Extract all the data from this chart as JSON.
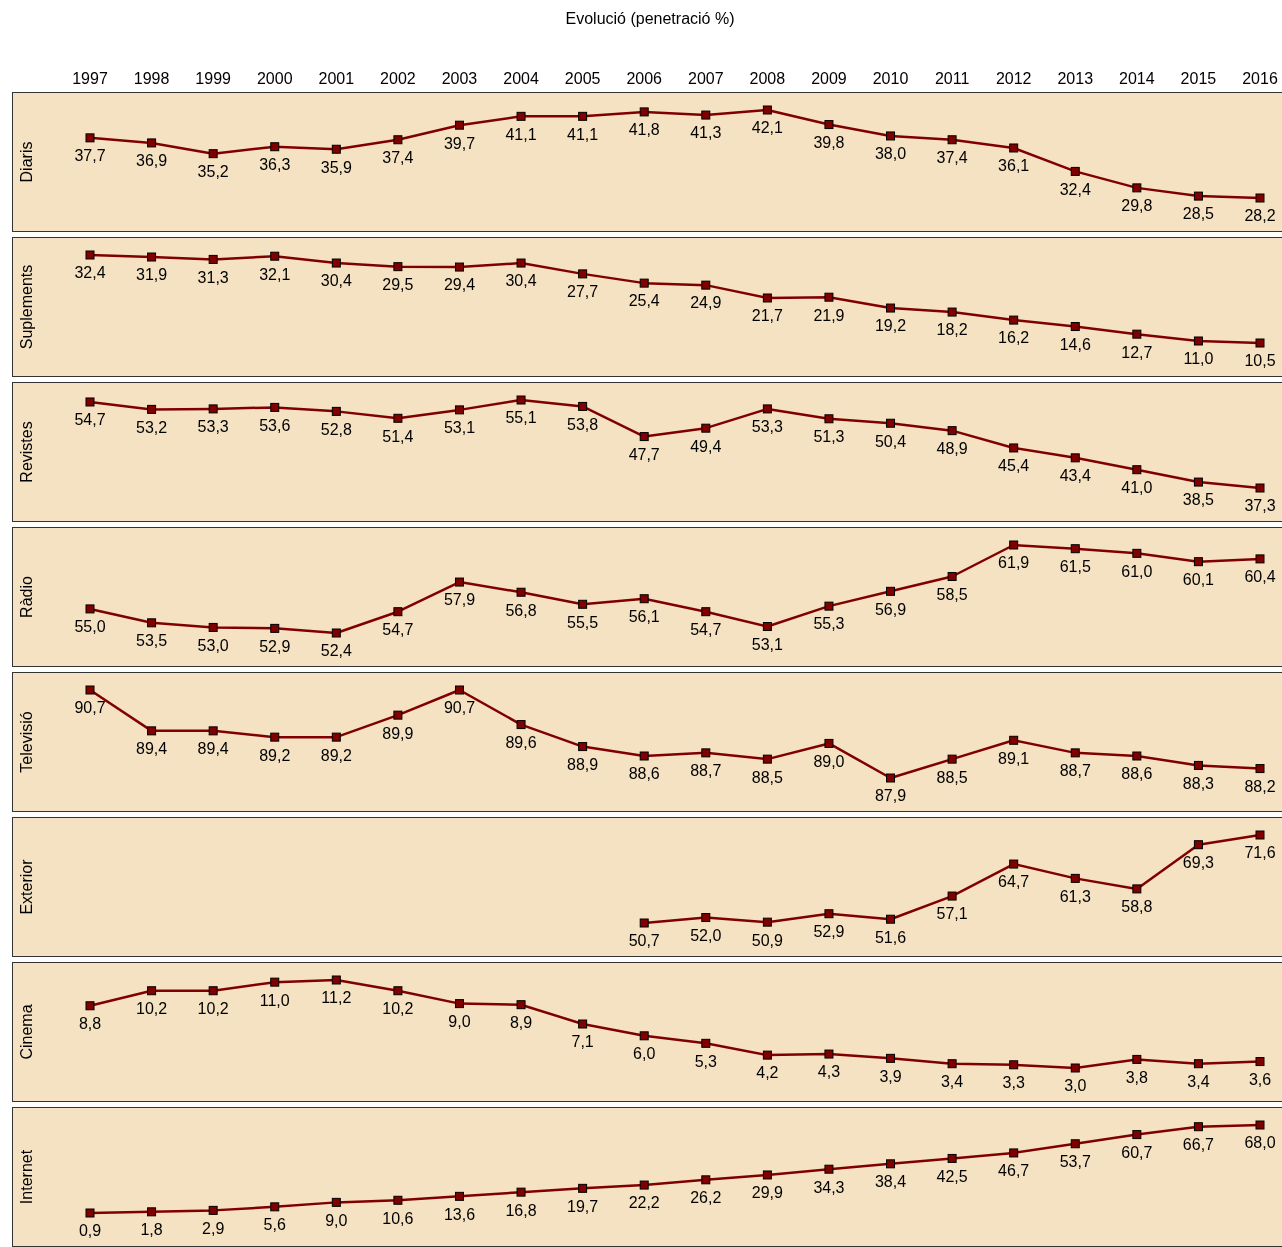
{
  "chart_data": [
    {
      "type": "line",
      "title": "Evolució (penetració %)",
      "ylabel": "Diaris",
      "categories": [
        "1997",
        "1998",
        "1999",
        "2000",
        "2001",
        "2002",
        "2003",
        "2004",
        "2005",
        "2006",
        "2007",
        "2008",
        "2009",
        "2010",
        "2011",
        "2012",
        "2013",
        "2014",
        "2015",
        "2016"
      ],
      "color": "#800000",
      "marker": "square",
      "tick_labels": "x",
      "values": [
        37.7,
        36.9,
        35.2,
        36.3,
        35.9,
        37.4,
        39.7,
        41.1,
        41.1,
        41.8,
        41.3,
        42.1,
        39.8,
        38.0,
        37.4,
        36.1,
        32.4,
        29.8,
        28.5,
        28.2
      ],
      "value_labels": [
        "37,7",
        "36,9",
        "35,2",
        "36,3",
        "35,9",
        "37,4",
        "39,7",
        "41,1",
        "41,1",
        "41,8",
        "41,3",
        "42,1",
        "39,8",
        "38,0",
        "37,4",
        "36,1",
        "32,4",
        "29,8",
        "28,5",
        "28,2"
      ]
    },
    {
      "type": "line",
      "ylabel": "Suplements",
      "categories": [
        "1997",
        "1998",
        "1999",
        "2000",
        "2001",
        "2002",
        "2003",
        "2004",
        "2005",
        "2006",
        "2007",
        "2008",
        "2009",
        "2010",
        "2011",
        "2012",
        "2013",
        "2014",
        "2015",
        "2016"
      ],
      "color": "#800000",
      "marker": "square",
      "tick_labels": false,
      "values": [
        32.4,
        31.9,
        31.3,
        32.1,
        30.4,
        29.5,
        29.4,
        30.4,
        27.7,
        25.4,
        24.9,
        21.7,
        21.9,
        19.2,
        18.2,
        16.2,
        14.6,
        12.7,
        11.0,
        10.5
      ],
      "value_labels": [
        "32,4",
        "31,9",
        "31,3",
        "32,1",
        "30,4",
        "29,5",
        "29,4",
        "30,4",
        "27,7",
        "25,4",
        "24,9",
        "21,7",
        "21,9",
        "19,2",
        "18,2",
        "16,2",
        "14,6",
        "12,7",
        "11,0",
        "10,5"
      ]
    },
    {
      "type": "line",
      "ylabel": "Revistes",
      "categories": [
        "1997",
        "1998",
        "1999",
        "2000",
        "2001",
        "2002",
        "2003",
        "2004",
        "2005",
        "2006",
        "2007",
        "2008",
        "2009",
        "2010",
        "2011",
        "2012",
        "2013",
        "2014",
        "2015",
        "2016"
      ],
      "color": "#800000",
      "marker": "square",
      "tick_labels": false,
      "values": [
        54.7,
        53.2,
        53.3,
        53.6,
        52.8,
        51.4,
        53.1,
        55.1,
        53.8,
        47.7,
        49.4,
        53.3,
        51.3,
        50.4,
        48.9,
        45.4,
        43.4,
        41.0,
        38.5,
        37.3
      ],
      "value_labels": [
        "54,7",
        "53,2",
        "53,3",
        "53,6",
        "52,8",
        "51,4",
        "53,1",
        "55,1",
        "53,8",
        "47,7",
        "49,4",
        "53,3",
        "51,3",
        "50,4",
        "48,9",
        "45,4",
        "43,4",
        "41,0",
        "38,5",
        "37,3"
      ]
    },
    {
      "type": "line",
      "ylabel": "Ràdio",
      "categories": [
        "1997",
        "1998",
        "1999",
        "2000",
        "2001",
        "2002",
        "2003",
        "2004",
        "2005",
        "2006",
        "2007",
        "2008",
        "2009",
        "2010",
        "2011",
        "2012",
        "2013",
        "2014",
        "2015",
        "2016"
      ],
      "color": "#800000",
      "marker": "square",
      "tick_labels": false,
      "values": [
        55.0,
        53.5,
        53.0,
        52.9,
        52.4,
        54.7,
        57.9,
        56.8,
        55.5,
        56.1,
        54.7,
        53.1,
        55.3,
        56.9,
        58.5,
        61.9,
        61.5,
        61.0,
        60.1,
        60.4
      ],
      "value_labels": [
        "55,0",
        "53,5",
        "53,0",
        "52,9",
        "52,4",
        "54,7",
        "57,9",
        "56,8",
        "55,5",
        "56,1",
        "54,7",
        "53,1",
        "55,3",
        "56,9",
        "58,5",
        "61,9",
        "61,5",
        "61,0",
        "60,1",
        "60,4"
      ]
    },
    {
      "type": "line",
      "ylabel": "Televisió",
      "categories": [
        "1997",
        "1998",
        "1999",
        "2000",
        "2001",
        "2002",
        "2003",
        "2004",
        "2005",
        "2006",
        "2007",
        "2008",
        "2009",
        "2010",
        "2011",
        "2012",
        "2013",
        "2014",
        "2015",
        "2016"
      ],
      "color": "#800000",
      "marker": "square",
      "tick_labels": false,
      "values": [
        90.7,
        89.4,
        89.4,
        89.2,
        89.2,
        89.9,
        90.7,
        89.6,
        88.9,
        88.6,
        88.7,
        88.5,
        89.0,
        87.9,
        88.5,
        89.1,
        88.7,
        88.6,
        88.3,
        88.2
      ],
      "value_labels": [
        "90,7",
        "89,4",
        "89,4",
        "89,2",
        "89,2",
        "89,9",
        "90,7",
        "89,6",
        "88,9",
        "88,6",
        "88,7",
        "88,5",
        "89,0",
        "87,9",
        "88,5",
        "89,1",
        "88,7",
        "88,6",
        "88,3",
        "88,2"
      ]
    },
    {
      "type": "line",
      "ylabel": "Exterior",
      "categories": [
        "1997",
        "1998",
        "1999",
        "2000",
        "2001",
        "2002",
        "2003",
        "2004",
        "2005",
        "2006",
        "2007",
        "2008",
        "2009",
        "2010",
        "2011",
        "2012",
        "2013",
        "2014",
        "2015",
        "2016"
      ],
      "color": "#800000",
      "marker": "square",
      "tick_labels": false,
      "values": [
        null,
        null,
        null,
        null,
        null,
        null,
        null,
        null,
        null,
        50.7,
        52.0,
        50.9,
        52.9,
        51.6,
        57.1,
        64.7,
        61.3,
        58.8,
        69.3,
        71.6
      ],
      "value_labels": [
        null,
        null,
        null,
        null,
        null,
        null,
        null,
        null,
        null,
        "50,7",
        "52,0",
        "50,9",
        "52,9",
        "51,6",
        "57,1",
        "64,7",
        "61,3",
        "58,8",
        "69,3",
        "71,6"
      ]
    },
    {
      "type": "line",
      "ylabel": "Cinema",
      "categories": [
        "1997",
        "1998",
        "1999",
        "2000",
        "2001",
        "2002",
        "2003",
        "2004",
        "2005",
        "2006",
        "2007",
        "2008",
        "2009",
        "2010",
        "2011",
        "2012",
        "2013",
        "2014",
        "2015",
        "2016"
      ],
      "color": "#800000",
      "marker": "square",
      "tick_labels": false,
      "values": [
        8.8,
        10.2,
        10.2,
        11.0,
        11.2,
        10.2,
        9.0,
        8.9,
        7.1,
        6.0,
        5.3,
        4.2,
        4.3,
        3.9,
        3.4,
        3.3,
        3.0,
        3.8,
        3.4,
        3.6
      ],
      "value_labels": [
        "8,8",
        "10,2",
        "10,2",
        "11,0",
        "11,2",
        "10,2",
        "9,0",
        "8,9",
        "7,1",
        "6,0",
        "5,3",
        "4,2",
        "4,3",
        "3,9",
        "3,4",
        "3,3",
        "3,0",
        "3,8",
        "3,4",
        "3,6"
      ]
    },
    {
      "type": "line",
      "ylabel": "Internet",
      "categories": [
        "1997",
        "1998",
        "1999",
        "2000",
        "2001",
        "2002",
        "2003",
        "2004",
        "2005",
        "2006",
        "2007",
        "2008",
        "2009",
        "2010",
        "2011",
        "2012",
        "2013",
        "2014",
        "2015",
        "2016"
      ],
      "color": "#800000",
      "marker": "square",
      "tick_labels": false,
      "values": [
        0.9,
        1.8,
        2.9,
        5.6,
        9.0,
        10.6,
        13.6,
        16.8,
        19.7,
        22.2,
        26.2,
        29.9,
        34.3,
        38.4,
        42.5,
        46.7,
        53.7,
        60.7,
        66.7,
        68.0
      ],
      "value_labels": [
        "0,9",
        "1,8",
        "2,9",
        "5,6",
        "9,0",
        "10,6",
        "13,6",
        "16,8",
        "19,7",
        "22,2",
        "26,2",
        "29,9",
        "34,3",
        "38,4",
        "42,5",
        "46,7",
        "53,7",
        "60,7",
        "66,7",
        "68,0"
      ]
    }
  ]
}
